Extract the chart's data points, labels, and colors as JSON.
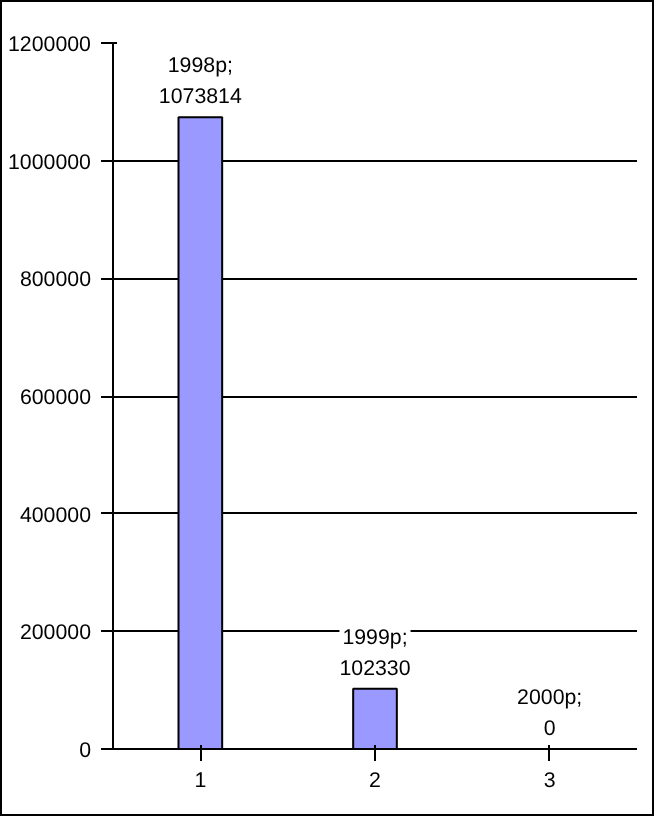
{
  "chart_data": {
    "type": "bar",
    "categories": [
      "1",
      "2",
      "3"
    ],
    "values": [
      1073814,
      102330,
      0
    ],
    "value_labels": [
      "1998р;\n1073814",
      "1999р;\n102330",
      "2000р;\n0"
    ],
    "color": "#9999ff",
    "ylim": [
      0,
      1200000
    ],
    "yticks": [
      0,
      200000,
      400000,
      600000,
      800000,
      1000000,
      1200000
    ],
    "grid": "y"
  }
}
